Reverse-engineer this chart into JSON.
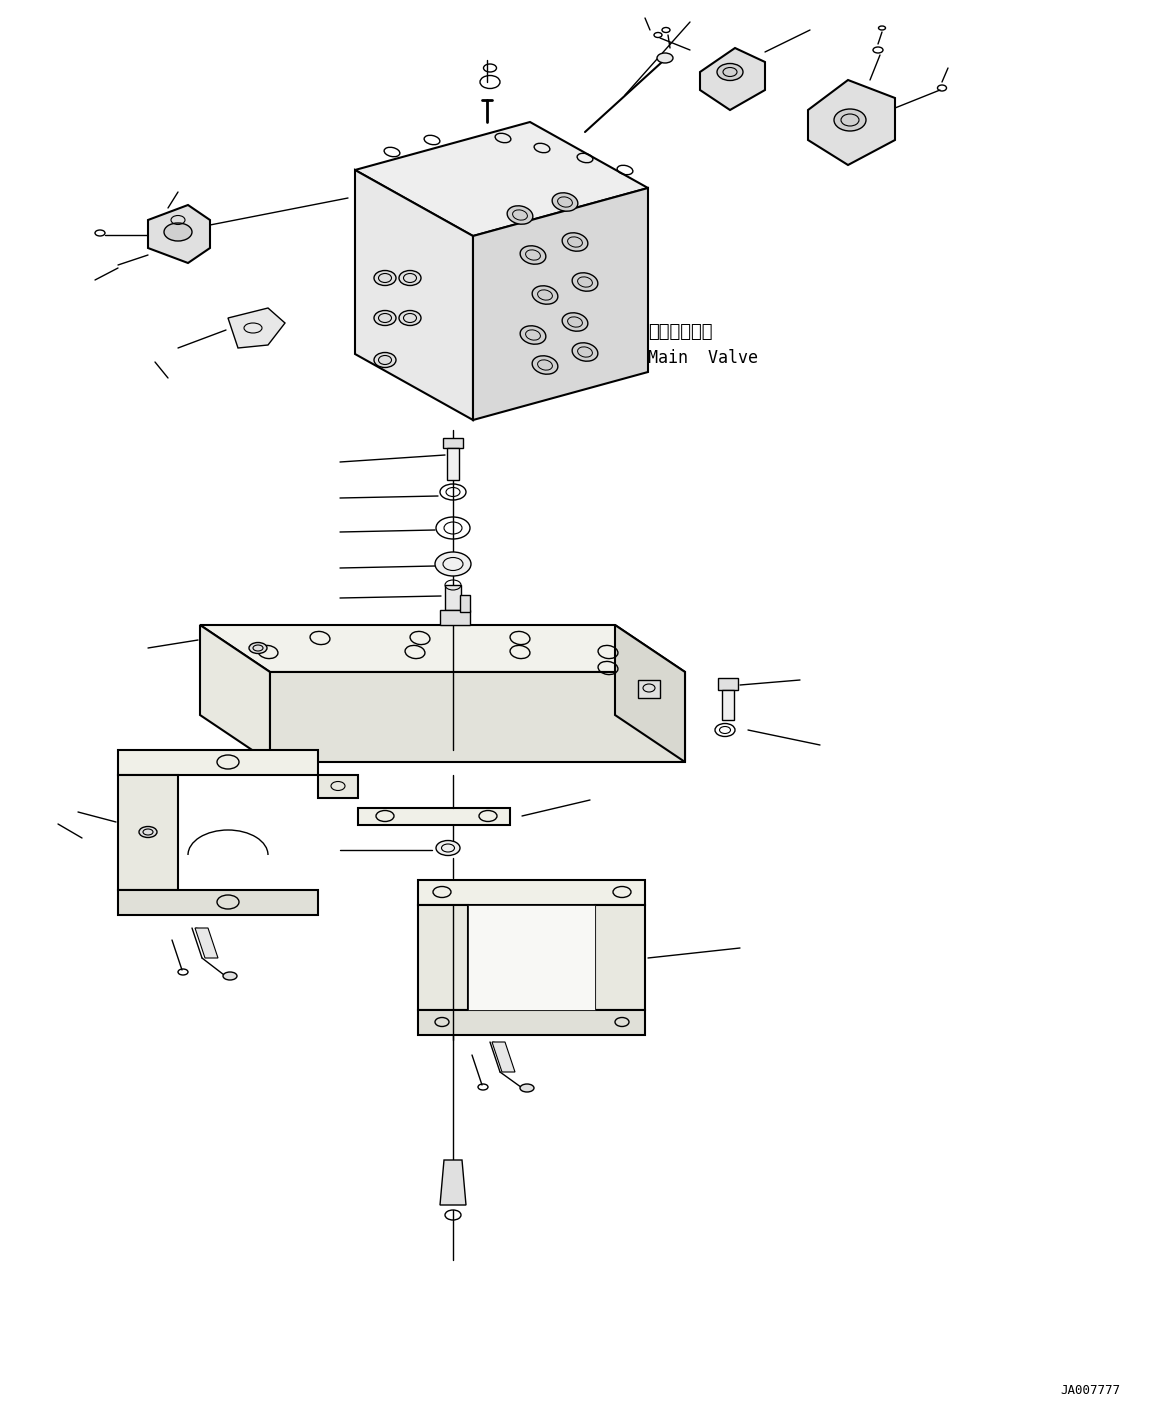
{
  "background_color": "#ffffff",
  "line_color": "#000000",
  "figure_id": "JA007777",
  "main_label_jp": "メインバルブ",
  "main_label_en": "Main  Valve"
}
